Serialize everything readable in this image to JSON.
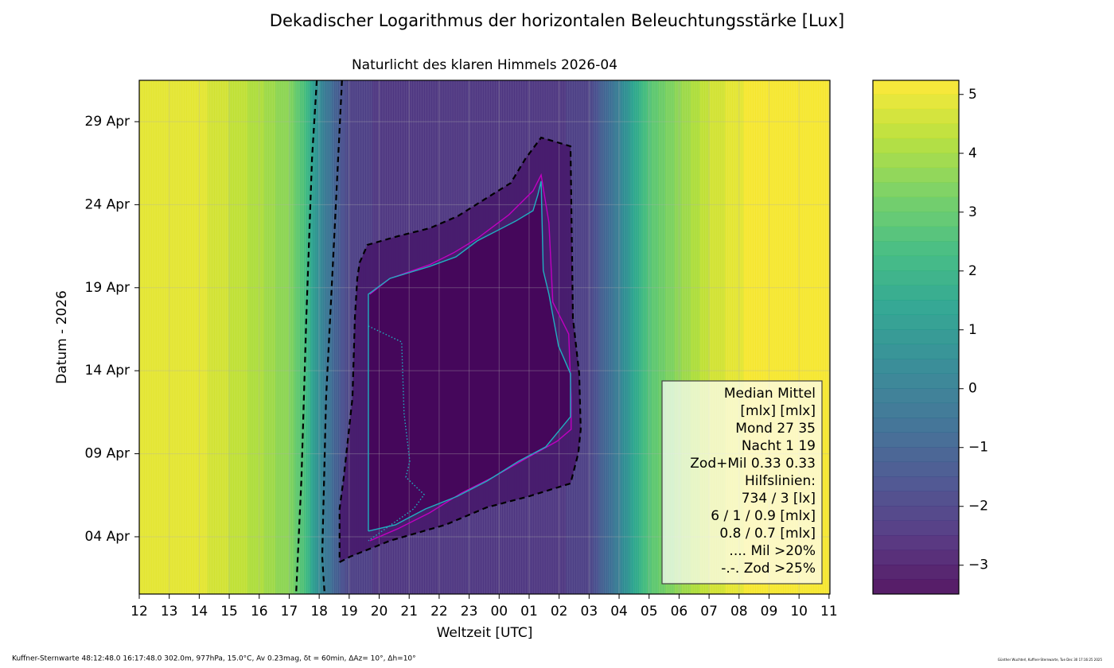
{
  "chart_data": {
    "type": "contour",
    "title": "Dekadischer Logarithmus der horizontalen Beleuchtungsstärke [Lux]",
    "subtitle": "Naturlicht des klaren Himmels 2026-04",
    "xlabel": "Weltzeit [UTC]",
    "ylabel": "Datum - 2026",
    "xlim": [
      12,
      35.03
    ],
    "ylim": [
      0.55,
      31.49
    ],
    "xticks": [
      12,
      13,
      14,
      15,
      16,
      17,
      18,
      19,
      20,
      21,
      22,
      23,
      {
        "value": 24,
        "label": "00"
      },
      {
        "value": 25,
        "label": "01"
      },
      {
        "value": 26,
        "label": "02"
      },
      {
        "value": 27,
        "label": "03"
      },
      {
        "value": 28,
        "label": "04"
      },
      {
        "value": 29,
        "label": "05"
      },
      {
        "value": 30,
        "label": "06"
      },
      {
        "value": 31,
        "label": "07"
      },
      {
        "value": 32,
        "label": "08"
      },
      {
        "value": 33,
        "label": "09"
      },
      {
        "value": 34,
        "label": "10"
      },
      {
        "value": 35,
        "label": "11"
      }
    ],
    "yticks": [
      {
        "value": 4,
        "label": "04 Apr"
      },
      {
        "value": 9,
        "label": "09 Apr"
      },
      {
        "value": 14,
        "label": "14 Apr"
      },
      {
        "value": 19,
        "label": "19 Apr"
      },
      {
        "value": 24,
        "label": "24 Apr"
      },
      {
        "value": 29,
        "label": "29 Apr"
      }
    ],
    "grid": true,
    "colormap": "viridis",
    "level_step": 0.25,
    "profile": {
      "x": [
        12,
        13.5,
        14.5,
        16,
        17,
        17.5,
        18,
        18.5,
        19,
        20,
        26,
        27,
        27.5,
        28,
        28.5,
        29,
        30,
        31,
        32,
        35.03
      ],
      "values": [
        5,
        5,
        4.7,
        4.1,
        3.5,
        2.5,
        0.5,
        -1,
        -2,
        -2.3,
        -2.3,
        -2,
        -1,
        0,
        1.5,
        2.7,
        3.7,
        4.5,
        5,
        5.2
      ]
    },
    "lines": [
      {
        "color": "#000000",
        "style": "dashed",
        "x": [
          17.92,
          17.76,
          17.57,
          17.41,
          17.23
        ],
        "y": [
          31.49,
          26.75,
          17.17,
          7.59,
          0.55
        ]
      },
      {
        "color": "#000000",
        "style": "dashed",
        "x": [
          18.76,
          18.5,
          18.23,
          18.1,
          18.18
        ],
        "y": [
          31.49,
          21.96,
          12.38,
          2.8,
          0.55
        ]
      },
      {
        "color": "#000000",
        "style": "dashed",
        "fill_level": -2.8,
        "x": [
          18.68,
          19.03,
          20.36,
          22.21,
          23.59,
          25.0,
          26.38,
          26.64,
          26.72,
          26.67,
          26.46,
          26.38,
          25.4,
          24.87,
          24.39,
          23.54,
          22.61,
          21.68,
          20.62,
          19.61,
          19.35,
          19.27,
          19.19,
          19.11,
          18.82,
          18.68,
          18.68
        ],
        "y": [
          2.47,
          2.8,
          3.76,
          4.72,
          5.77,
          6.44,
          7.21,
          9.03,
          10.47,
          13.82,
          17.17,
          27.52,
          28.04,
          26.75,
          25.31,
          24.35,
          23.3,
          22.58,
          22.1,
          21.58,
          20.52,
          19.56,
          17.17,
          12.38,
          7.59,
          5.68,
          2.47
        ]
      },
      {
        "color": "#c000c0",
        "style": "solid",
        "x": [
          19.69,
          20.62,
          21.68,
          22.74,
          23.8,
          24.87,
          25.93,
          26.4,
          26.4,
          26.32,
          25.79,
          25.66,
          25.4,
          25.13,
          24.33,
          23.27,
          22.48,
          21.68,
          20.36,
          19.69
        ],
        "y": [
          3.76,
          4.48,
          5.44,
          6.63,
          7.59,
          8.69,
          9.75,
          10.47,
          12.38,
          16.21,
          18.13,
          22.92,
          25.79,
          24.83,
          23.4,
          21.96,
          21.1,
          20.38,
          19.56,
          18.61
        ]
      },
      {
        "color": "#20b0c0",
        "style": "solid",
        "fill_level": -3.3,
        "x": [
          19.64,
          20.54,
          21.55,
          22.61,
          23.59,
          24.65,
          25.55,
          26.38,
          26.38,
          25.98,
          25.66,
          25.47,
          25.4,
          25.29,
          25.13,
          24.55,
          23.27,
          22.56,
          21.68,
          20.36,
          19.64,
          19.64
        ],
        "y": [
          4.34,
          4.72,
          5.68,
          6.44,
          7.35,
          8.55,
          9.41,
          11.23,
          13.82,
          15.49,
          18.61,
          20.04,
          25.41,
          24.59,
          23.64,
          23.01,
          21.82,
          20.86,
          20.28,
          19.56,
          18.61,
          4.34
        ]
      },
      {
        "color": "#20b0c0",
        "style": "dotted",
        "x": [
          19.64,
          20.75,
          20.83,
          21.02,
          20.89,
          21.5,
          21.15,
          19.64
        ],
        "y": [
          16.69,
          15.73,
          11.42,
          8.55,
          7.59,
          6.54,
          5.68,
          3.76
        ]
      }
    ],
    "legend_text": [
      "Median Mittel",
      "[mlx]  [mlx]",
      "Mond   27  35",
      "Nacht   1  19",
      "Zod+Mil 0.33  0.33",
      "Hilfslinien:",
      "734 / 3  [lx]",
      "6 /  1 / 0.9 [mlx]",
      "0.8 / 0.7 [mlx]",
      ".... Mil >20%",
      "-.-. Zod >25%"
    ],
    "colorbar": {
      "clim": [
        -3.49,
        5.24
      ],
      "ticks": [
        {
          "value": -3,
          "label": "−3"
        },
        {
          "value": -2,
          "label": "−2"
        },
        {
          "value": -1,
          "label": "−1"
        },
        0,
        1,
        2,
        3,
        4,
        5
      ]
    },
    "footer": "Kuffner-Sternwarte 48:12:48.0 16:17:48.0 302.0m,  977hPa, 15.0°C, Av 0.23mag, δt = 60min, ΔAz= 10°, Δh=10°",
    "credit": "Günther Wuchterl, Kuffner-Sternwarte, Tue Dec 30 17:16:25 2025"
  }
}
